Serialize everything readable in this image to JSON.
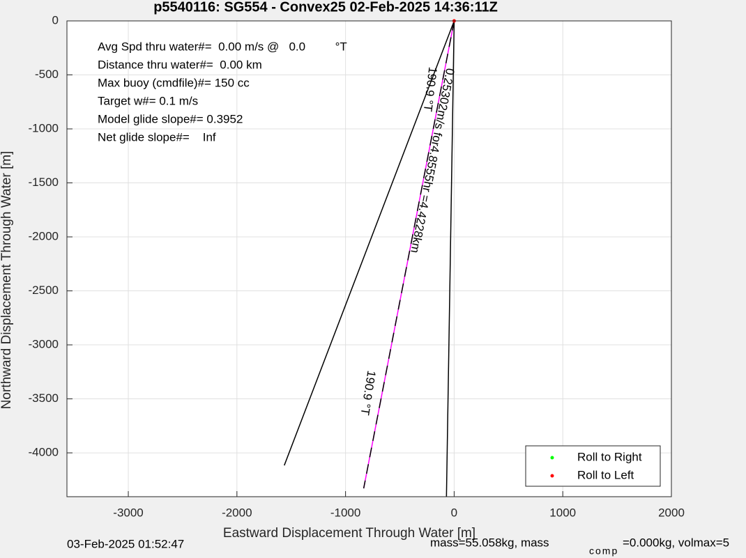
{
  "chart_data": {
    "type": "line",
    "title": "p5540116: SG554 - Convex25 02-Feb-2025 14:36:11Z",
    "xlabel": "Eastward Displacement Through Water [m]",
    "ylabel": "Northward Displacement Through Water [m]",
    "xlim": [
      -3565,
      2000
    ],
    "ylim": [
      -4406,
      0
    ],
    "xticks": [
      -3000,
      -2000,
      -1000,
      0,
      1000,
      2000
    ],
    "yticks": [
      0,
      -500,
      -1000,
      -1500,
      -2000,
      -2500,
      -3000,
      -3500,
      -4000
    ],
    "grid": true,
    "legend_position": "lower right",
    "series": [
      {
        "name": "Roll to Right",
        "color": "#00ff00",
        "x": [],
        "values": []
      },
      {
        "name": "Roll to Left",
        "color": "#ff0000",
        "x": [
          0
        ],
        "values": [
          0
        ]
      }
    ],
    "lines": [
      {
        "color": "#000000",
        "x": [
          0,
          -1564
        ],
        "values": [
          0,
          -4116
        ]
      },
      {
        "color": "#ff00ff",
        "dash_color": "#000000",
        "x": [
          0,
          -833
        ],
        "values": [
          0,
          -4329
        ]
      },
      {
        "color": "#000000",
        "x": [
          0,
          -71
        ],
        "values": [
          0,
          -4406
        ]
      }
    ],
    "info": [
      "Avg Spd thru water#=  0.00 m/s @   0.0         °T",
      "Distance thru water#=  0.00 km",
      "Max buoy (cmdfile)#= 150 cc",
      "Target w#= 0.1 m/s",
      "Model glide slope#= 0.3952",
      "Net glide slope#=    Inf"
    ],
    "annotations": [
      "190.9 °T",
      "0.25302m/s for4.8555hr =4.4228km",
      "190.9 °T"
    ],
    "footer_left": "03-Feb-2025 01:52:47",
    "footer_right": [
      "mass=55.058kg, mass",
      "comp",
      "=0.000kg, volmax=5"
    ]
  }
}
